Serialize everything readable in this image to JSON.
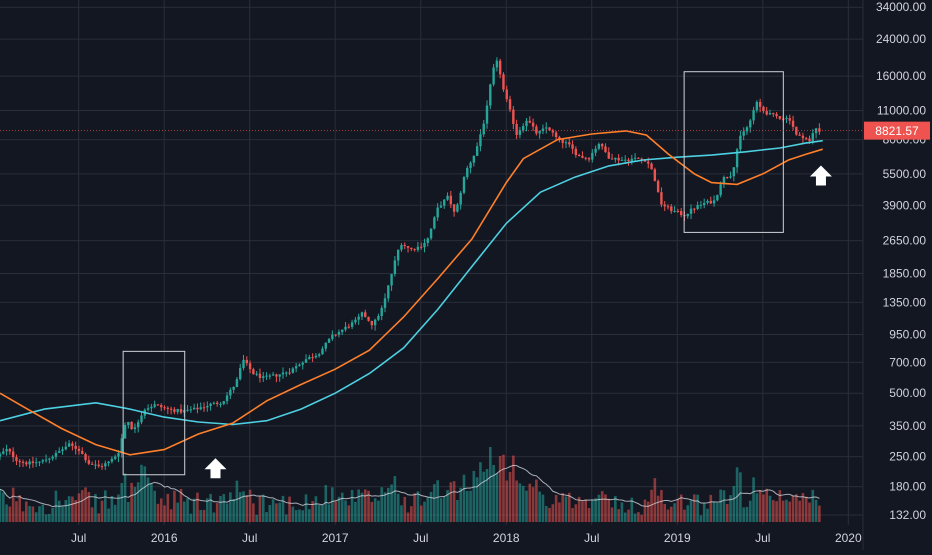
{
  "chart_data": {
    "type": "candlestick",
    "y_scale": "log",
    "ylim": [
      125,
      36000
    ],
    "y_ticks": [
      "34000.00",
      "24000.00",
      "16000.00",
      "11000.00",
      "8000.00",
      "5500.00",
      "3900.00",
      "2650.00",
      "1850.00",
      "1350.00",
      "950.00",
      "700.00",
      "500.00",
      "350.00",
      "250.00",
      "180.00",
      "132.00"
    ],
    "x_ticks": [
      "Jul",
      "2016",
      "Jul",
      "2017",
      "Jul",
      "2018",
      "Jul",
      "2019",
      "Jul",
      "2020"
    ],
    "x_tick_years": [
      2015.5,
      2016.0,
      2016.5,
      2017.0,
      2017.5,
      2018.0,
      2018.5,
      2019.0,
      2019.5,
      2020.0
    ],
    "xlim": [
      2015.04,
      2020.08
    ],
    "last_price": "8821.57",
    "last_price_value": 8821.57,
    "grid": true,
    "colors": {
      "background": "#131722",
      "grid": "#2a2e39",
      "up": "#26a69a",
      "down": "#ef5350",
      "ma_fast": "#ff7f2a",
      "ma_slow": "#4dd0e1",
      "volume_avg": "#d1d4dc",
      "annotation": "#ffffff",
      "price_label": "#ef5350"
    },
    "price_path": [
      [
        2015.04,
        250
      ],
      [
        2015.1,
        270
      ],
      [
        2015.16,
        240
      ],
      [
        2015.22,
        232
      ],
      [
        2015.3,
        236
      ],
      [
        2015.38,
        255
      ],
      [
        2015.46,
        285
      ],
      [
        2015.52,
        270
      ],
      [
        2015.58,
        232
      ],
      [
        2015.64,
        224
      ],
      [
        2015.7,
        236
      ],
      [
        2015.75,
        260
      ],
      [
        2015.8,
        380
      ],
      [
        2015.84,
        330
      ],
      [
        2015.9,
        420
      ],
      [
        2015.96,
        440
      ],
      [
        2016.04,
        420
      ],
      [
        2016.12,
        410
      ],
      [
        2016.2,
        420
      ],
      [
        2016.28,
        440
      ],
      [
        2016.36,
        455
      ],
      [
        2016.44,
        560
      ],
      [
        2016.48,
        720
      ],
      [
        2016.54,
        620
      ],
      [
        2016.6,
        590
      ],
      [
        2016.68,
        610
      ],
      [
        2016.76,
        640
      ],
      [
        2016.84,
        720
      ],
      [
        2016.92,
        770
      ],
      [
        2017.0,
        930
      ],
      [
        2017.06,
        1000
      ],
      [
        2017.14,
        1100
      ],
      [
        2017.18,
        1200
      ],
      [
        2017.24,
        1050
      ],
      [
        2017.3,
        1300
      ],
      [
        2017.36,
        2000
      ],
      [
        2017.4,
        2600
      ],
      [
        2017.46,
        2400
      ],
      [
        2017.52,
        2500
      ],
      [
        2017.56,
        2700
      ],
      [
        2017.62,
        3800
      ],
      [
        2017.68,
        4300
      ],
      [
        2017.72,
        3500
      ],
      [
        2017.78,
        5600
      ],
      [
        2017.84,
        7000
      ],
      [
        2017.9,
        10500
      ],
      [
        2017.94,
        17000
      ],
      [
        2017.97,
        19000
      ],
      [
        2018.0,
        14000
      ],
      [
        2018.04,
        11000
      ],
      [
        2018.08,
        8500
      ],
      [
        2018.14,
        10000
      ],
      [
        2018.2,
        8500
      ],
      [
        2018.26,
        9200
      ],
      [
        2018.32,
        8000
      ],
      [
        2018.38,
        7600
      ],
      [
        2018.44,
        6700
      ],
      [
        2018.5,
        6500
      ],
      [
        2018.56,
        7700
      ],
      [
        2018.62,
        6600
      ],
      [
        2018.7,
        6400
      ],
      [
        2018.78,
        6500
      ],
      [
        2018.84,
        6400
      ],
      [
        2018.88,
        5500
      ],
      [
        2018.92,
        4000
      ],
      [
        2018.96,
        3800
      ],
      [
        2019.0,
        3650
      ],
      [
        2019.06,
        3500
      ],
      [
        2019.12,
        3800
      ],
      [
        2019.18,
        4000
      ],
      [
        2019.24,
        4100
      ],
      [
        2019.28,
        5200
      ],
      [
        2019.34,
        5500
      ],
      [
        2019.38,
        8000
      ],
      [
        2019.44,
        9500
      ],
      [
        2019.48,
        12000
      ],
      [
        2019.52,
        11000
      ],
      [
        2019.56,
        10500
      ],
      [
        2019.62,
        10200
      ],
      [
        2019.68,
        10000
      ],
      [
        2019.72,
        8200
      ],
      [
        2019.76,
        8300
      ],
      [
        2019.8,
        7700
      ],
      [
        2019.82,
        9200
      ],
      [
        2019.85,
        8821
      ]
    ],
    "ma_fast": [
      [
        2015.04,
        500
      ],
      [
        2015.2,
        420
      ],
      [
        2015.4,
        340
      ],
      [
        2015.6,
        285
      ],
      [
        2015.8,
        255
      ],
      [
        2016.0,
        270
      ],
      [
        2016.2,
        320
      ],
      [
        2016.4,
        360
      ],
      [
        2016.6,
        460
      ],
      [
        2016.8,
        550
      ],
      [
        2017.0,
        650
      ],
      [
        2017.2,
        800
      ],
      [
        2017.4,
        1150
      ],
      [
        2017.6,
        1750
      ],
      [
        2017.8,
        2700
      ],
      [
        2018.0,
        5000
      ],
      [
        2018.1,
        6500
      ],
      [
        2018.3,
        8000
      ],
      [
        2018.5,
        8500
      ],
      [
        2018.7,
        8800
      ],
      [
        2018.82,
        8400
      ],
      [
        2018.95,
        6800
      ],
      [
        2019.1,
        5500
      ],
      [
        2019.2,
        5000
      ],
      [
        2019.35,
        4900
      ],
      [
        2019.5,
        5500
      ],
      [
        2019.65,
        6400
      ],
      [
        2019.75,
        6800
      ],
      [
        2019.85,
        7200
      ]
    ],
    "ma_slow": [
      [
        2015.04,
        370
      ],
      [
        2015.3,
        420
      ],
      [
        2015.6,
        450
      ],
      [
        2015.8,
        420
      ],
      [
        2016.0,
        385
      ],
      [
        2016.2,
        365
      ],
      [
        2016.4,
        355
      ],
      [
        2016.6,
        370
      ],
      [
        2016.8,
        420
      ],
      [
        2017.0,
        500
      ],
      [
        2017.2,
        620
      ],
      [
        2017.4,
        820
      ],
      [
        2017.6,
        1250
      ],
      [
        2017.8,
        2000
      ],
      [
        2018.0,
        3200
      ],
      [
        2018.2,
        4500
      ],
      [
        2018.4,
        5300
      ],
      [
        2018.6,
        6000
      ],
      [
        2018.8,
        6400
      ],
      [
        2019.0,
        6600
      ],
      [
        2019.2,
        6750
      ],
      [
        2019.4,
        7000
      ],
      [
        2019.6,
        7300
      ],
      [
        2019.75,
        7700
      ],
      [
        2019.85,
        7900
      ]
    ],
    "annotations": [
      {
        "type": "box",
        "x0": 2015.76,
        "x1": 2016.12,
        "y0": 205,
        "y1": 790
      },
      {
        "type": "box",
        "x0": 2019.04,
        "x1": 2019.62,
        "y0": 2900,
        "y1": 16800
      },
      {
        "type": "arrow-up",
        "x": 2016.3,
        "y": 220
      },
      {
        "type": "arrow-up",
        "x": 2019.84,
        "y": 5400
      }
    ]
  }
}
